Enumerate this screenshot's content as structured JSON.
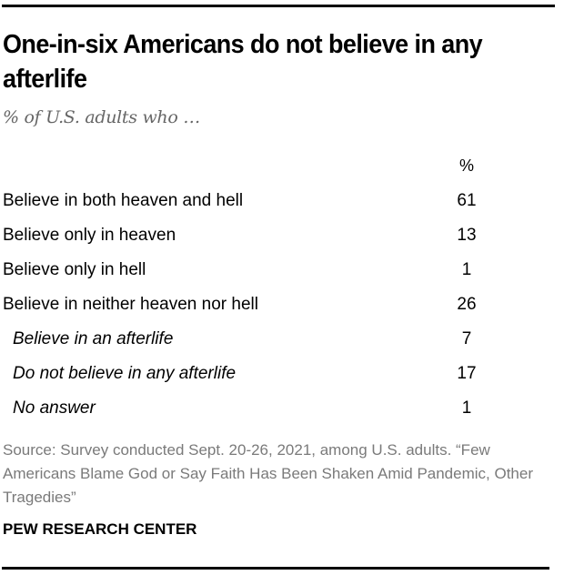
{
  "header": {
    "title": "One-in-six Americans do not believe in any afterlife",
    "subtitle": "% of U.S. adults who …"
  },
  "table": {
    "column_header": "%",
    "rows": [
      {
        "label": "Believe in both heaven and hell",
        "value": "61",
        "indent": false
      },
      {
        "label": "Believe only in heaven",
        "value": "13",
        "indent": false
      },
      {
        "label": "Believe only in hell",
        "value": "1",
        "indent": false
      },
      {
        "label": "Believe in neither heaven nor hell",
        "value": "26",
        "indent": false
      },
      {
        "label": "Believe in an afterlife",
        "value": "7",
        "indent": true
      },
      {
        "label": "Do not believe in any afterlife",
        "value": "17",
        "indent": true
      },
      {
        "label": "No answer",
        "value": "1",
        "indent": true
      }
    ]
  },
  "footer": {
    "source": "Source: Survey conducted Sept. 20-26, 2021, among U.S. adults. “Few Americans Blame God or Say Faith Has Been Shaken Amid Pandemic, Other Tragedies”",
    "brand": "PEW RESEARCH CENTER"
  },
  "colors": {
    "text": "#000000",
    "subtitle": "#666666",
    "source": "#7a7a7a",
    "rule": "#000000",
    "background": "#ffffff"
  },
  "chart_data": {
    "type": "table",
    "title": "One-in-six Americans do not believe in any afterlife",
    "subtitle": "% of U.S. adults who …",
    "column_header": "%",
    "categories": [
      "Believe in both heaven and hell",
      "Believe only in heaven",
      "Believe only in hell",
      "Believe in neither heaven nor hell",
      "Believe in an afterlife",
      "Do not believe in any afterlife",
      "No answer"
    ],
    "values": [
      61,
      13,
      1,
      26,
      7,
      17,
      1
    ],
    "hierarchy": {
      "Believe in neither heaven nor hell": [
        "Believe in an afterlife",
        "Do not believe in any afterlife",
        "No answer"
      ]
    },
    "source": "Source: Survey conducted Sept. 20-26, 2021, among U.S. adults. “Few Americans Blame God or Say Faith Has Been Shaken Amid Pandemic, Other Tragedies”",
    "attribution": "PEW RESEARCH CENTER"
  }
}
